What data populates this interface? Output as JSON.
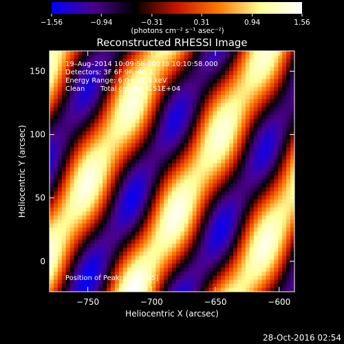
{
  "chart_data": {
    "type": "heatmap",
    "title": "Reconstructed RHESSI Image",
    "xlabel": "Heliocentric X (arcsec)",
    "ylabel": "Heliocentric Y (arcsec)",
    "xlim": [
      -780,
      -588
    ],
    "ylim": [
      -24,
      166
    ],
    "x_ticks": [
      -750,
      -700,
      -650,
      -600
    ],
    "x_tick_labels": [
      "−750",
      "−700",
      "−650",
      "−600"
    ],
    "y_ticks": [
      0,
      50,
      100,
      150
    ],
    "y_tick_labels": [
      "0",
      "50",
      "100",
      "150"
    ],
    "colorbar": {
      "range": [
        -1.56,
        1.56
      ],
      "ticks": [
        -1.56,
        -0.94,
        -0.31,
        0.31,
        0.94,
        1.56
      ],
      "tick_labels": [
        "−1.56",
        "−0.94",
        "−0.31",
        "0.31",
        "0.94",
        "1.56"
      ],
      "unit_label": "(photons cm⁻² s⁻¹ asec⁻²)",
      "colors": [
        "#0000ff",
        "#4b008c",
        "#000000",
        "#c81400",
        "#ff7800",
        "#ffff96",
        "#ffffff"
      ]
    },
    "annotations": [
      "19–Aug–2014 10:09:58.000 to 10:10:58.000",
      "Detectors: 3F 6F 9F, Att 1",
      "Energy Range: 6.0 – 12.0 keV",
      "Clean",
      "Total counts: 6.51E+04",
      "Position of Peak: [-715,-25]"
    ],
    "peak": [
      -715,
      -25
    ],
    "grid": false
  },
  "footer": {
    "timestamp": "28-Oct-2016 02:54"
  }
}
